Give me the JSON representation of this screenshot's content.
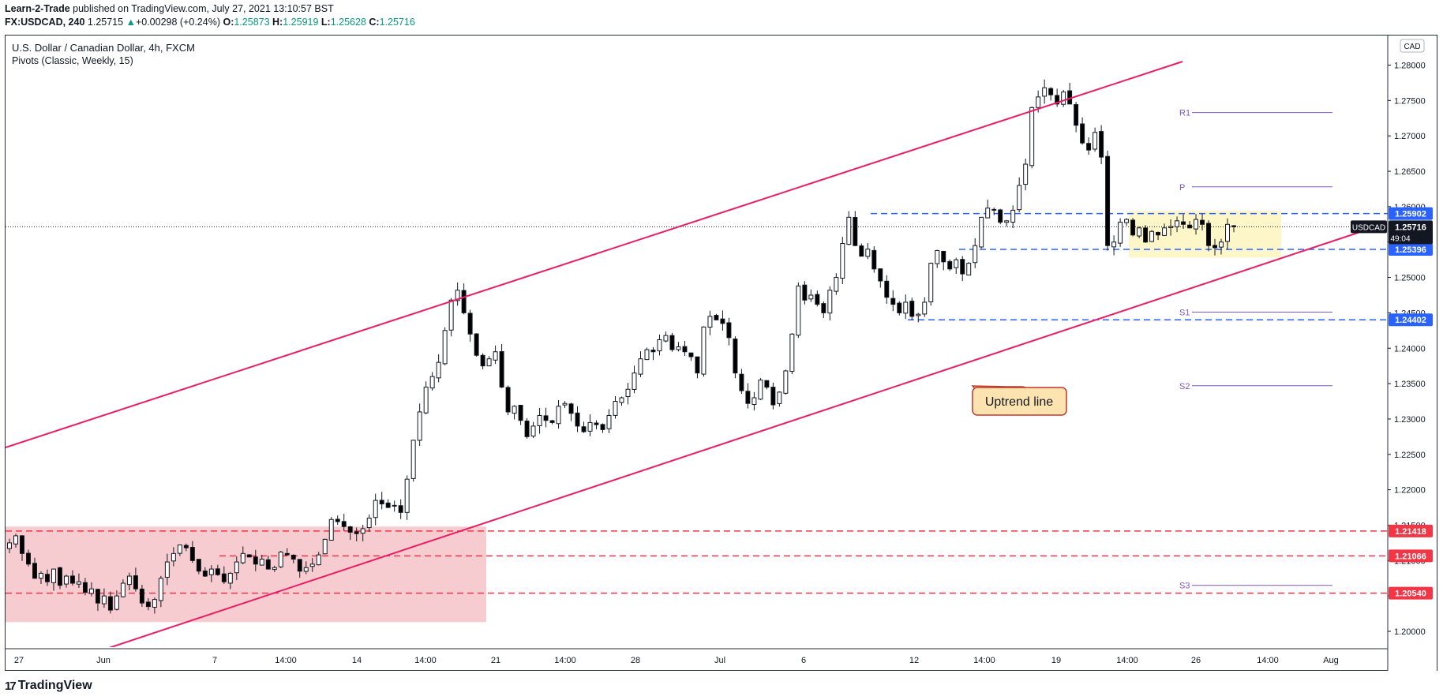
{
  "header": {
    "publisher": "Learn-2-Trade",
    "published_text": "published on TradingView.com, July 27, 2021 13:10:57 BST",
    "symbol": "FX:USDCAD, 240",
    "last": "1.25715",
    "change": "+0.00298 (+0.24%)",
    "o_label": "O:",
    "o": "1.25873",
    "h_label": "H:",
    "h": "1.25919",
    "l_label": "L:",
    "l": "1.25628",
    "c_label": "C:",
    "c": "1.25716"
  },
  "legend": {
    "title": "U.S. Dollar / Canadian Dollar, 4h, FXCM",
    "indicator": "Pivots (Classic, Weekly, 15)"
  },
  "footer": {
    "brand": "TradingView"
  },
  "colors": {
    "trendline": "#e91e63",
    "blue_level": "#2962ff",
    "red_level": "#f23645",
    "pivot": "#7e57c2",
    "candle_up": "#ffffff",
    "candle_down": "#000000",
    "red_zone": "#f7c9cd",
    "yellow_zone": "#fdf6c9",
    "callout_fill": "#fde3b0",
    "callout_border": "#c0392b"
  },
  "chart_data": {
    "type": "candlestick",
    "currency": "CAD",
    "symbol_tag": "USDCAD",
    "last_price": "1.25716",
    "countdown": "49:04",
    "ylim": [
      1.1975,
      1.2815
    ],
    "y_ticks": [
      "1.28000",
      "1.27500",
      "1.27000",
      "1.26500",
      "1.26000",
      "1.25500",
      "1.25000",
      "1.24500",
      "1.24000",
      "1.23500",
      "1.23000",
      "1.22500",
      "1.22000",
      "1.21500",
      "1.21000",
      "1.20500",
      "1.20000"
    ],
    "x_ticks": [
      "27",
      "Jun",
      "7",
      "14:00",
      "14",
      "14:00",
      "21",
      "14:00",
      "28",
      "Jul",
      "6",
      "12",
      "14:00",
      "19",
      "14:00",
      "26",
      "14:00",
      "Aug"
    ],
    "horizontal_levels": [
      {
        "value": 1.25902,
        "label": "1.25902",
        "color": "blue"
      },
      {
        "value": 1.25396,
        "label": "1.25396",
        "color": "blue"
      },
      {
        "value": 1.24402,
        "label": "1.24402",
        "color": "blue"
      },
      {
        "value": 1.21418,
        "label": "1.21418",
        "color": "red"
      },
      {
        "value": 1.21066,
        "label": "1.21066",
        "color": "red"
      },
      {
        "value": 1.2054,
        "label": "1.20540",
        "color": "red"
      }
    ],
    "pivots": [
      {
        "name": "R1",
        "value": 1.2733
      },
      {
        "name": "P",
        "value": 1.2628
      },
      {
        "name": "S1",
        "value": 1.2451
      },
      {
        "name": "S2",
        "value": 1.2347
      },
      {
        "name": "S3",
        "value": 1.2065
      }
    ],
    "annotation": "Uptrend line",
    "closes": [
      1.2125,
      1.2135,
      1.211,
      1.2095,
      1.2075,
      1.2082,
      1.207,
      1.2088,
      1.2065,
      1.2078,
      1.2068,
      1.207,
      1.2055,
      1.206,
      1.204,
      1.205,
      1.203,
      1.205,
      1.2068,
      1.2078,
      1.206,
      1.204,
      1.2035,
      1.2045,
      1.2075,
      1.2098,
      1.211,
      1.2122,
      1.2118,
      1.21,
      1.2085,
      1.2078,
      1.2088,
      1.208,
      1.207,
      1.2082,
      1.2098,
      1.211,
      1.2105,
      1.2095,
      1.2102,
      1.2088,
      1.209,
      1.2112,
      1.2108,
      1.2102,
      1.2085,
      1.209,
      1.2095,
      1.2108,
      1.213,
      1.2158,
      1.2155,
      1.2148,
      1.214,
      1.2138,
      1.2145,
      1.216,
      1.2185,
      1.218,
      1.2175,
      1.2178,
      1.2168,
      1.2215,
      1.227,
      1.231,
      1.2345,
      1.236,
      1.238,
      1.2425,
      1.2468,
      1.2482,
      1.245,
      1.242,
      1.239,
      1.2375,
      1.2385,
      1.2395,
      1.2345,
      1.231,
      1.2318,
      1.2298,
      1.2275,
      1.229,
      1.2305,
      1.2298,
      1.2295,
      1.2318,
      1.2322,
      1.2308,
      1.229,
      1.2282,
      1.2295,
      1.2292,
      1.2285,
      1.2305,
      1.2325,
      1.233,
      1.2342,
      1.2365,
      1.2385,
      1.2398,
      1.2395,
      1.2412,
      1.2418,
      1.2398,
      1.2402,
      1.2395,
      1.2388,
      1.2365,
      1.243,
      1.2445,
      1.244,
      1.2435,
      1.2415,
      1.2365,
      1.234,
      1.2322,
      1.233,
      1.2355,
      1.2345,
      1.232,
      1.2338,
      1.2368,
      1.242,
      1.2488,
      1.2468,
      1.2475,
      1.2462,
      1.245,
      1.2482,
      1.25,
      1.2548,
      1.2585,
      1.2545,
      1.253,
      1.254,
      1.2512,
      1.2495,
      1.2472,
      1.2462,
      1.245,
      1.2465,
      1.2445,
      1.2448,
      1.2465,
      1.252,
      1.2538,
      1.2522,
      1.2512,
      1.2525,
      1.2505,
      1.252,
      1.2545,
      1.2585,
      1.2598,
      1.2595,
      1.2578,
      1.258,
      1.2595,
      1.263,
      1.266,
      1.274,
      1.2755,
      1.2768,
      1.2758,
      1.2745,
      1.2762,
      1.2745,
      1.2715,
      1.269,
      1.268,
      1.2705,
      1.267,
      1.2545,
      1.255,
      1.2578,
      1.2582,
      1.256,
      1.257,
      1.255,
      1.2565,
      1.256,
      1.257,
      1.2572,
      1.258,
      1.2575,
      1.257,
      1.2582,
      1.2575,
      1.2545,
      1.2542,
      1.255,
      1.2575,
      1.25716
    ]
  }
}
